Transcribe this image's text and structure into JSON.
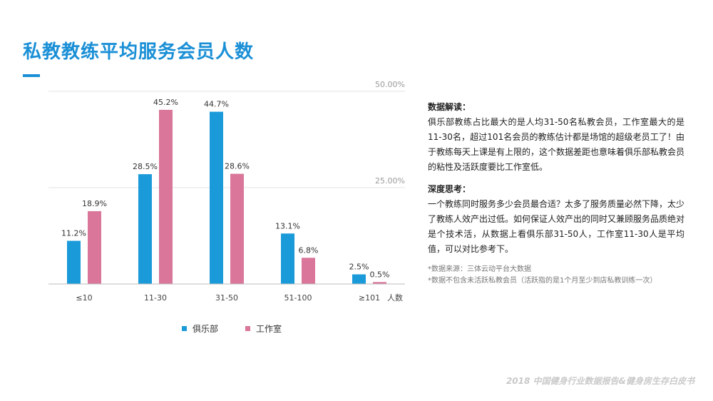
{
  "title": "私教教练平均服务会员人数",
  "chart_data": {
    "type": "bar",
    "categories": [
      "≤10",
      "11-30",
      "31-50",
      "51-100",
      "≥101"
    ],
    "series": [
      {
        "name": "俱乐部",
        "values": [
          11.2,
          28.5,
          44.7,
          13.1,
          2.5
        ],
        "labels": [
          "11.2%",
          "28.5%",
          "44.7%",
          "13.1%",
          "2.5%"
        ],
        "color": "#1a9ad9"
      },
      {
        "name": "工作室",
        "values": [
          18.9,
          45.2,
          28.6,
          6.8,
          0.5
        ],
        "labels": [
          "18.9%",
          "45.2%",
          "28.6%",
          "6.8%",
          "0.5%"
        ],
        "color": "#d9769a"
      }
    ],
    "xlabel": "人数",
    "ylim": [
      0,
      50
    ],
    "yticks": [
      {
        "value": 25,
        "label": "25.00%"
      },
      {
        "value": 50,
        "label": "50.00%"
      }
    ],
    "grid": true,
    "legend": "bottom"
  },
  "analysis": {
    "heading1": "数据解读：",
    "text1": "俱乐部教练占比最大的是人均31-50名私教会员，工作室最大的是11-30名，超过101名会员的教练估计都是场馆的超级老员工了！由于教练每天上课是有上限的，这个数据差距也意味着俱乐部私教会员的粘性及活跃度要比工作室低。",
    "heading2": "深度思考：",
    "text2": "一个教练同时服务多少会员最合适？太多了服务质量必然下降，太少了教练人效产出过低。如何保证人效产出的同时又兼顾服务品质绝对是个技术活，从数据上看俱乐部31-50人，工作室11-30人是平均值，可以对比参考下。",
    "note1": "*数据来源：三体云动平台大数据",
    "note2": "*数据不包含未活跃私教会员（活跃指的是1个月至少到店私教训练一次）"
  },
  "footer": "2018 中国健身行业数据报告&健身房生存白皮书"
}
